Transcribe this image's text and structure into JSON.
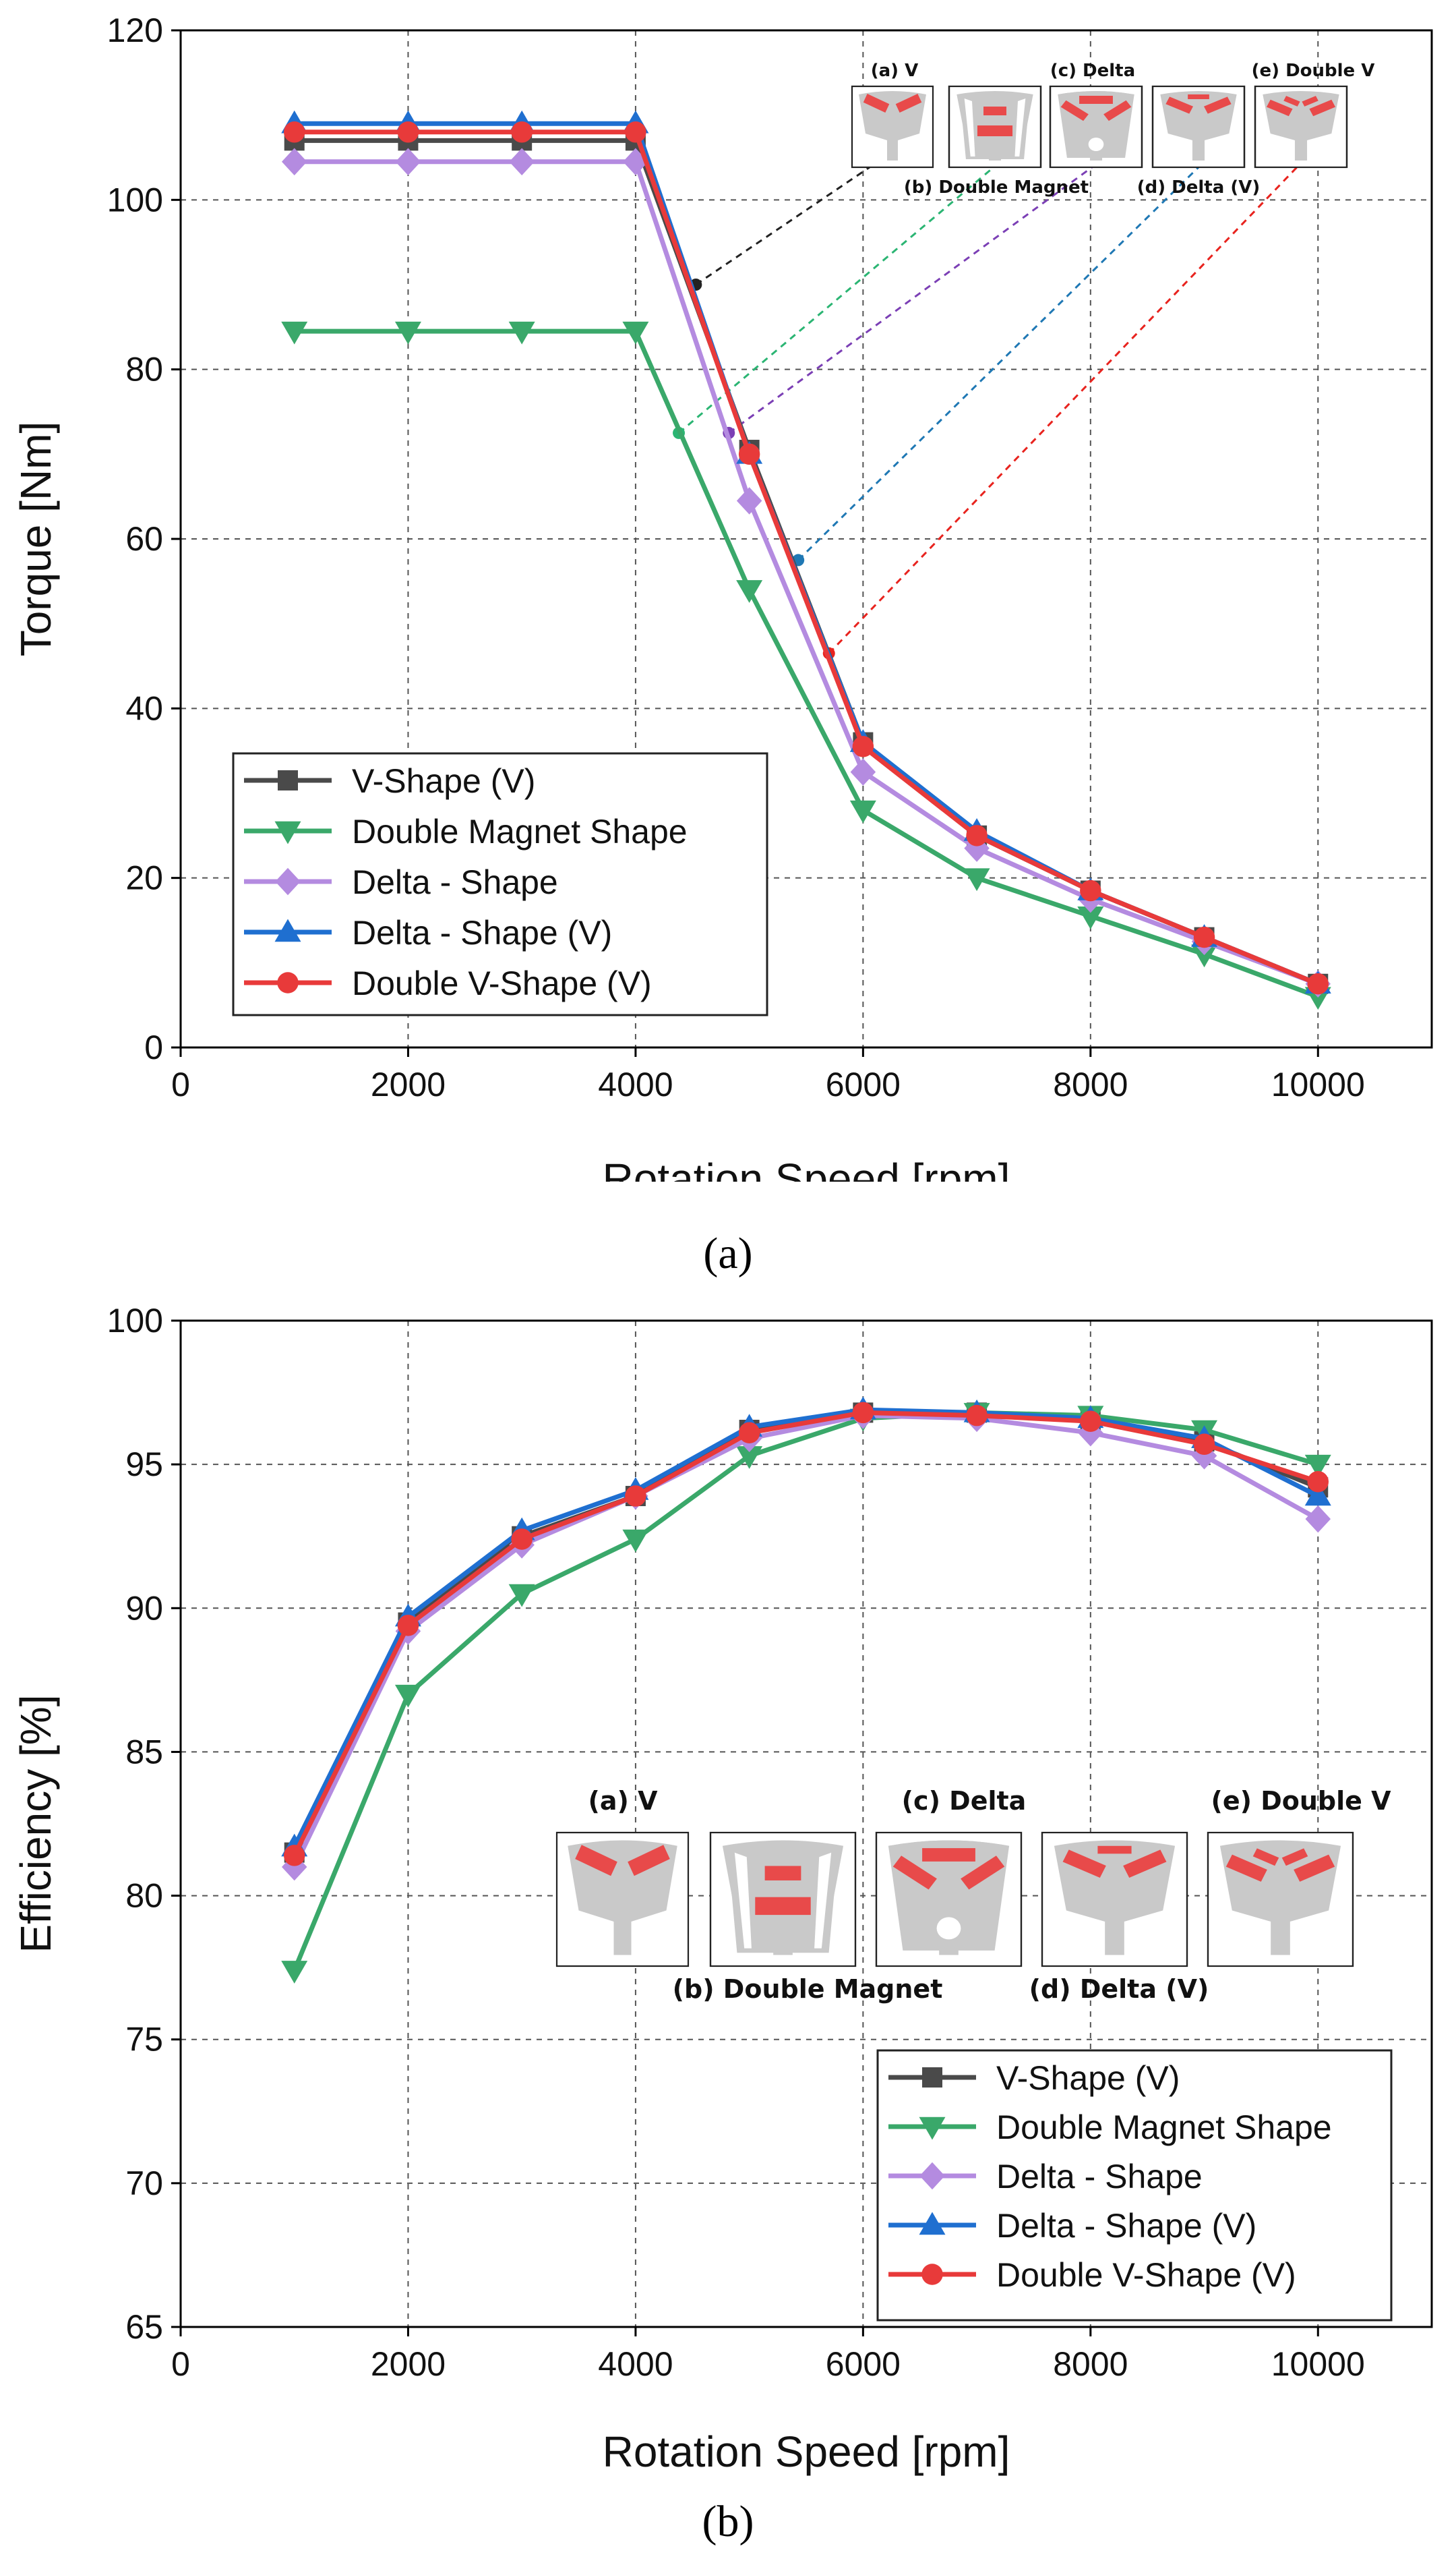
{
  "chart_data": [
    {
      "type": "line",
      "panel_label": "(a)",
      "xlabel": "Rotation Speed [rpm]",
      "ylabel": "Torque [Nm]",
      "xlim": [
        0,
        11000
      ],
      "ylim": [
        0,
        120
      ],
      "xticks": [
        0,
        2000,
        4000,
        6000,
        8000,
        10000
      ],
      "yticks": [
        0,
        20,
        40,
        60,
        80,
        100,
        120
      ],
      "grid": true,
      "legend_position": "bottom-left",
      "x": [
        1000,
        2000,
        3000,
        4000,
        5000,
        6000,
        7000,
        8000,
        9000,
        10000
      ],
      "series": [
        {
          "name": "V-Shape (V)",
          "color": "#4a4a4a",
          "marker": "square",
          "values": [
            107,
            107,
            107,
            107,
            70.5,
            36,
            25,
            18.5,
            13,
            7.5
          ]
        },
        {
          "name": "Double Magnet Shape",
          "color": "#3aa86a",
          "marker": "triangle-down",
          "values": [
            84.5,
            84.5,
            84.5,
            84.5,
            54,
            28,
            20,
            15.5,
            11,
            6
          ]
        },
        {
          "name": "Delta - Shape",
          "color": "#b48be0",
          "marker": "diamond",
          "values": [
            104.5,
            104.5,
            104.5,
            104.5,
            64.5,
            32.5,
            23.5,
            17.5,
            12.5,
            7.5
          ]
        },
        {
          "name": "Delta - Shape (V)",
          "color": "#1f6fd0",
          "marker": "triangle-up",
          "values": [
            109,
            109,
            109,
            109,
            70,
            36,
            25.5,
            18.5,
            13,
            7.5
          ]
        },
        {
          "name": "Double V-Shape (V)",
          "color": "#e83a3a",
          "marker": "circle",
          "values": [
            108,
            108,
            108,
            108,
            70,
            35.5,
            25,
            18.5,
            13,
            7.5
          ]
        }
      ],
      "annotations": [
        {
          "label": "(a) V",
          "color": "#222222",
          "point": [
            4530,
            90
          ]
        },
        {
          "label": "(b) Double Magnet",
          "color": "#2bb573",
          "point": [
            4380,
            72.5
          ]
        },
        {
          "label": "(c) Delta",
          "color": "#7b3fb5",
          "point": [
            4820,
            72.5
          ]
        },
        {
          "label": "(d) Delta (V)",
          "color": "#1f78b4",
          "point": [
            5430,
            57.5
          ]
        },
        {
          "label": "(e) Double V",
          "color": "#e8231e",
          "point": [
            5700,
            46.5
          ]
        }
      ]
    },
    {
      "type": "line",
      "panel_label": "(b)",
      "xlabel": "Rotation Speed [rpm]",
      "ylabel": "Efficiency [%]",
      "xlim": [
        0,
        11000
      ],
      "ylim": [
        65,
        100
      ],
      "xticks": [
        0,
        2000,
        4000,
        6000,
        8000,
        10000
      ],
      "yticks": [
        65,
        70,
        75,
        80,
        85,
        90,
        95,
        100
      ],
      "grid": true,
      "legend_position": "bottom-right",
      "x": [
        1000,
        2000,
        3000,
        4000,
        5000,
        6000,
        7000,
        8000,
        9000,
        10000
      ],
      "series": [
        {
          "name": "V-Shape (V)",
          "color": "#4a4a4a",
          "marker": "square",
          "values": [
            81.5,
            89.5,
            92.5,
            93.9,
            96.2,
            96.8,
            96.8,
            96.5,
            95.8,
            94.2
          ]
        },
        {
          "name": "Double Magnet Shape",
          "color": "#3aa86a",
          "marker": "triangle-down",
          "values": [
            77.4,
            87,
            90.5,
            92.4,
            95.3,
            96.6,
            96.8,
            96.7,
            96.2,
            95
          ]
        },
        {
          "name": "Delta - Shape",
          "color": "#b48be0",
          "marker": "diamond",
          "values": [
            81,
            89.2,
            92.2,
            93.9,
            95.9,
            96.7,
            96.6,
            96.1,
            95.3,
            93.1
          ]
        },
        {
          "name": "Delta - Shape (V)",
          "color": "#1f6fd0",
          "marker": "triangle-up",
          "values": [
            81.7,
            89.7,
            92.7,
            94.1,
            96.3,
            96.9,
            96.8,
            96.6,
            95.9,
            93.9
          ]
        },
        {
          "name": "Double V-Shape (V)",
          "color": "#e83a3a",
          "marker": "circle",
          "values": [
            81.4,
            89.4,
            92.4,
            93.9,
            96.1,
            96.8,
            96.7,
            96.5,
            95.7,
            94.4
          ]
        }
      ],
      "annotations": [
        {
          "label": "(a) V"
        },
        {
          "label": "(b) Double Magnet"
        },
        {
          "label": "(c) Delta"
        },
        {
          "label": "(d) Delta (V)"
        },
        {
          "label": "(e) Double V"
        }
      ]
    }
  ]
}
